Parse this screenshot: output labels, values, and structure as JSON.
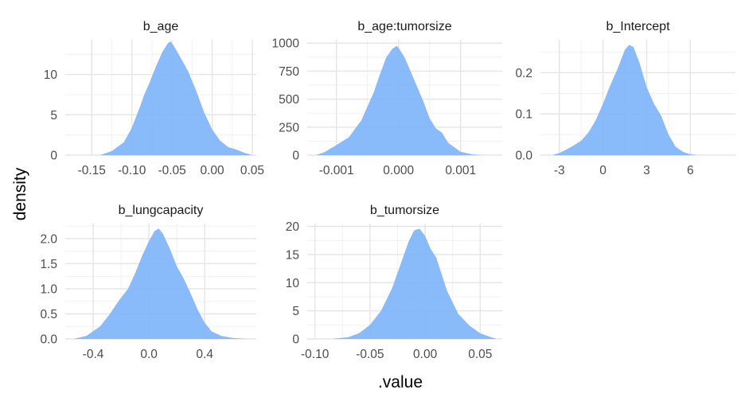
{
  "xlabel": ".value",
  "ylabel": "density",
  "colors": {
    "fill": "#7fb4f8",
    "fill_opacity": 0.92
  },
  "chart_data": [
    {
      "type": "area",
      "title": "b_age",
      "xlim": [
        -0.183,
        0.055
      ],
      "ylim": [
        0,
        14.3
      ],
      "xticks": [
        -0.15,
        -0.1,
        -0.05,
        0.0,
        0.05
      ],
      "xticklabels": [
        "-0.15",
        "-0.10",
        "-0.05",
        "0.00",
        "0.05"
      ],
      "yticks": [
        0,
        5,
        10
      ],
      "yticklabels": [
        "0",
        "5",
        "10"
      ],
      "x": [
        -0.14,
        -0.125,
        -0.11,
        -0.1,
        -0.09,
        -0.085,
        -0.078,
        -0.07,
        -0.062,
        -0.055,
        -0.052,
        -0.048,
        -0.04,
        -0.03,
        -0.02,
        -0.01,
        0.0,
        0.01,
        0.02,
        0.03,
        0.04,
        0.05
      ],
      "y": [
        0,
        0.5,
        1.6,
        3.4,
        6.0,
        7.4,
        9.0,
        11.0,
        12.8,
        13.9,
        14.1,
        13.6,
        12.2,
        10.4,
        8.0,
        5.3,
        3.2,
        1.8,
        1.0,
        0.7,
        0.3,
        0
      ]
    },
    {
      "type": "area",
      "title": "b_age:tumorsize",
      "xlim": [
        -0.00147,
        0.00167
      ],
      "ylim": [
        0,
        1030
      ],
      "xticks": [
        -0.001,
        0.0,
        0.001
      ],
      "xticklabels": [
        "-0.001",
        "0.000",
        "0.001"
      ],
      "yticks": [
        0,
        250,
        500,
        750,
        1000
      ],
      "yticklabels": [
        "0",
        "250",
        "500",
        "750",
        "1000"
      ],
      "x": [
        -0.00133,
        -0.0012,
        -0.001,
        -0.0008,
        -0.0006,
        -0.0004,
        -0.0003,
        -0.0002,
        -0.0001,
        -3e-05,
        0.0,
        0.0001,
        0.0002,
        0.0003,
        0.0004,
        0.0005,
        0.0006,
        0.0007,
        0.0008,
        0.001,
        0.0012,
        0.00135
      ],
      "y": [
        0,
        25,
        90,
        160,
        310,
        560,
        720,
        870,
        950,
        975,
        960,
        870,
        740,
        610,
        480,
        330,
        240,
        200,
        110,
        30,
        6,
        0
      ]
    },
    {
      "type": "area",
      "title": "b_Intercept",
      "xlim": [
        -4.3,
        9.1
      ],
      "ylim": [
        0,
        0.28
      ],
      "xticks": [
        -3,
        0,
        3,
        6
      ],
      "xticklabels": [
        "-3",
        "0",
        "3",
        "6"
      ],
      "yticks": [
        0.0,
        0.1,
        0.2
      ],
      "yticklabels": [
        "0.0",
        "0.1",
        "0.2"
      ],
      "x": [
        -3.5,
        -3.0,
        -2.5,
        -2.0,
        -1.5,
        -1.0,
        -0.5,
        0.0,
        0.5,
        1.0,
        1.5,
        1.8,
        2.1,
        2.5,
        3.0,
        3.5,
        4.0,
        4.5,
        5.0,
        5.5,
        6.0,
        6.5
      ],
      "y": [
        0,
        0.005,
        0.014,
        0.024,
        0.035,
        0.055,
        0.085,
        0.125,
        0.17,
        0.21,
        0.255,
        0.268,
        0.262,
        0.225,
        0.165,
        0.125,
        0.095,
        0.05,
        0.02,
        0.008,
        0.002,
        0
      ]
    },
    {
      "type": "area",
      "title": "b_lungcapacity",
      "xlim": [
        -0.6,
        0.77
      ],
      "ylim": [
        0,
        2.3
      ],
      "xticks": [
        -0.4,
        0.0,
        0.4
      ],
      "xticklabels": [
        "-0.4",
        "0.0",
        "0.4"
      ],
      "yticks": [
        0.0,
        0.5,
        1.0,
        1.5,
        2.0
      ],
      "yticklabels": [
        "0.0",
        "0.5",
        "1.0",
        "1.5",
        "2.0"
      ],
      "x": [
        -0.54,
        -0.45,
        -0.35,
        -0.28,
        -0.22,
        -0.15,
        -0.1,
        -0.05,
        0.0,
        0.04,
        0.07,
        0.1,
        0.15,
        0.2,
        0.25,
        0.3,
        0.35,
        0.4,
        0.45,
        0.52,
        0.6,
        0.7
      ],
      "y": [
        0,
        0.06,
        0.25,
        0.5,
        0.75,
        1.0,
        1.3,
        1.65,
        1.95,
        2.15,
        2.2,
        2.1,
        1.8,
        1.45,
        1.2,
        0.9,
        0.58,
        0.32,
        0.15,
        0.06,
        0.02,
        0
      ]
    },
    {
      "type": "area",
      "title": "b_tumorsize",
      "xlim": [
        -0.107,
        0.07
      ],
      "ylim": [
        0,
        20.5
      ],
      "xticks": [
        -0.1,
        -0.05,
        0.0,
        0.05
      ],
      "xticklabels": [
        "-0.10",
        "-0.05",
        "0.00",
        "0.05"
      ],
      "yticks": [
        0,
        5,
        10,
        15,
        20
      ],
      "yticklabels": [
        "0",
        "5",
        "10",
        "15",
        "20"
      ],
      "x": [
        -0.085,
        -0.07,
        -0.06,
        -0.05,
        -0.04,
        -0.03,
        -0.02,
        -0.015,
        -0.01,
        -0.005,
        0.0,
        0.005,
        0.01,
        0.015,
        0.02,
        0.03,
        0.04,
        0.05,
        0.06,
        0.065
      ],
      "y": [
        0,
        0.3,
        1.0,
        2.5,
        5.0,
        9.0,
        14.5,
        17.3,
        19.3,
        19.6,
        18.3,
        16.0,
        14.5,
        11.5,
        8.5,
        4.5,
        2.4,
        1.0,
        0.3,
        0
      ]
    }
  ]
}
